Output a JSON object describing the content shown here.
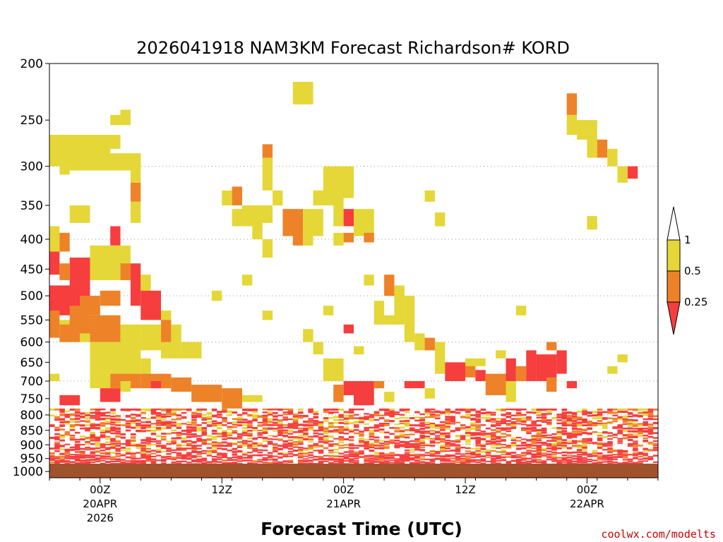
{
  "chart_data": {
    "type": "heatmap",
    "title": "2026041918 NAM3KM Forecast Richardson# KORD",
    "xlabel": "Forecast Time (UTC)",
    "ylabel": "",
    "y_axis": {
      "scale": "log-pressure",
      "inverted": true,
      "range": [
        1025,
        200
      ],
      "ticks": [
        "200",
        "250",
        "300",
        "350",
        "400",
        "450",
        "500",
        "550",
        "600",
        "650",
        "700",
        "750",
        "800",
        "850",
        "900",
        "950",
        "1000"
      ]
    },
    "x_axis": {
      "start_hour_utc": 18,
      "start_date": "2026-04-19",
      "range_hours": [
        -5,
        55
      ],
      "ticks": [
        {
          "hour": 0,
          "label": "00Z",
          "sub": "20APR",
          "sub2": "2026"
        },
        {
          "hour": 12,
          "label": "12Z",
          "sub": "",
          "sub2": ""
        },
        {
          "hour": 24,
          "label": "00Z",
          "sub": "21APR",
          "sub2": ""
        },
        {
          "hour": 36,
          "label": "12Z",
          "sub": "",
          "sub2": ""
        },
        {
          "hour": 48,
          "label": "00Z",
          "sub": "22APR",
          "sub2": ""
        }
      ]
    },
    "grid": {
      "horizontal_dotted": true,
      "levels": [
        300,
        400,
        500,
        600,
        700,
        800,
        900
      ]
    },
    "legend": {
      "placement": "right",
      "bins": [
        {
          "label": "> 1",
          "color": "#ffffff"
        },
        {
          "label": "0.5 - 1",
          "color": "#e4d737"
        },
        {
          "label": "0.25 - 0.5",
          "color": "#ee8228"
        },
        {
          "label": "< 0.25",
          "color": "#f63e3e"
        }
      ],
      "tick_labels": [
        "1",
        "0.5",
        "0.25"
      ]
    },
    "ground_color": "#a0522d",
    "cells": [
      [
        -5,
        1,
        265,
        300,
        "Y"
      ],
      [
        -4,
        2,
        265,
        280,
        "Y"
      ],
      [
        -3,
        4,
        285,
        305,
        "Y"
      ],
      [
        -4,
        -3,
        300,
        310,
        "Y"
      ],
      [
        -2,
        -1,
        285,
        300,
        "Y"
      ],
      [
        -3,
        -1,
        350,
        375,
        "Y"
      ],
      [
        1,
        3,
        245,
        255,
        "Y"
      ],
      [
        2,
        3,
        240,
        248,
        "Y"
      ],
      [
        3,
        4,
        285,
        320,
        "Y"
      ],
      [
        3,
        4,
        320,
        345,
        "O"
      ],
      [
        3,
        4,
        345,
        375,
        "Y"
      ],
      [
        1,
        2,
        380,
        410,
        "R"
      ],
      [
        -1,
        3,
        410,
        470,
        "Y"
      ],
      [
        0,
        2,
        440,
        470,
        "Y"
      ],
      [
        19,
        21,
        215,
        235,
        "Y"
      ],
      [
        16,
        17,
        275,
        290,
        "O"
      ],
      [
        16,
        17,
        290,
        330,
        "Y"
      ],
      [
        22,
        25,
        300,
        340,
        "Y"
      ],
      [
        21,
        24,
        330,
        350,
        "Y"
      ],
      [
        18,
        20,
        355,
        395,
        "O"
      ],
      [
        20,
        22,
        355,
        395,
        "Y"
      ],
      [
        23,
        24,
        350,
        380,
        "Y"
      ],
      [
        24,
        25,
        355,
        380,
        "R"
      ],
      [
        25,
        27,
        355,
        395,
        "Y"
      ],
      [
        26,
        27,
        390,
        405,
        "O"
      ],
      [
        19,
        20,
        395,
        410,
        "O"
      ],
      [
        20,
        21,
        395,
        410,
        "Y"
      ],
      [
        23,
        24,
        390,
        410,
        "Y"
      ],
      [
        24,
        25,
        390,
        405,
        "O"
      ],
      [
        12,
        13,
        330,
        350,
        "Y"
      ],
      [
        13,
        14,
        325,
        350,
        "O"
      ],
      [
        14,
        17,
        350,
        375,
        "Y"
      ],
      [
        15,
        16,
        375,
        400,
        "Y"
      ],
      [
        16,
        17,
        400,
        430,
        "Y"
      ],
      [
        17,
        18,
        330,
        350,
        "Y"
      ],
      [
        13,
        16,
        355,
        380,
        "Y"
      ],
      [
        32,
        33,
        330,
        345,
        "Y"
      ],
      [
        33,
        34,
        360,
        380,
        "Y"
      ],
      [
        14,
        15,
        460,
        480,
        "Y"
      ],
      [
        11,
        12,
        490,
        510,
        "Y"
      ],
      [
        16,
        17,
        530,
        550,
        "Y"
      ],
      [
        26,
        27,
        460,
        480,
        "Y"
      ],
      [
        46,
        47,
        225,
        245,
        "O"
      ],
      [
        46,
        47,
        245,
        265,
        "Y"
      ],
      [
        47,
        48,
        250,
        270,
        "Y"
      ],
      [
        48,
        49,
        250,
        290,
        "Y"
      ],
      [
        49,
        50,
        270,
        290,
        "O"
      ],
      [
        50,
        51,
        280,
        300,
        "Y"
      ],
      [
        51,
        52,
        300,
        320,
        "Y"
      ],
      [
        52,
        53,
        300,
        315,
        "R"
      ],
      [
        48,
        49,
        365,
        385,
        "Y"
      ],
      [
        -5,
        -4,
        380,
        420,
        "Y"
      ],
      [
        -4,
        -3,
        390,
        420,
        "O"
      ],
      [
        -5,
        -4,
        420,
        460,
        "R"
      ],
      [
        -3,
        -1,
        430,
        480,
        "R"
      ],
      [
        -4,
        -3,
        440,
        470,
        "O"
      ],
      [
        -5,
        -1,
        480,
        540,
        "R"
      ],
      [
        -2,
        0,
        500,
        540,
        "O"
      ],
      [
        0,
        2,
        490,
        520,
        "O"
      ],
      [
        2,
        3,
        440,
        470,
        "O"
      ],
      [
        3,
        4,
        440,
        520,
        "R"
      ],
      [
        4,
        5,
        460,
        520,
        "Y"
      ],
      [
        4,
        6,
        490,
        550,
        "R"
      ],
      [
        6,
        7,
        530,
        560,
        "Y"
      ],
      [
        -5,
        -4,
        530,
        590,
        "O"
      ],
      [
        -4,
        -1,
        550,
        600,
        "Y"
      ],
      [
        -3,
        -1,
        520,
        580,
        "O"
      ],
      [
        -1,
        2,
        540,
        600,
        "O"
      ],
      [
        2,
        4,
        560,
        620,
        "Y"
      ],
      [
        -1,
        4,
        600,
        680,
        "Y"
      ],
      [
        4,
        6,
        560,
        620,
        "Y"
      ],
      [
        6,
        7,
        550,
        620,
        "O"
      ],
      [
        7,
        8,
        560,
        600,
        "Y"
      ],
      [
        6,
        8,
        600,
        640,
        "Y"
      ],
      [
        8,
        10,
        600,
        640,
        "Y"
      ],
      [
        4,
        5,
        640,
        680,
        "Y"
      ],
      [
        -4,
        -2,
        560,
        600,
        "O"
      ],
      [
        -1,
        1,
        680,
        720,
        "Y"
      ],
      [
        1,
        4,
        680,
        720,
        "O"
      ],
      [
        4,
        7,
        680,
        720,
        "O"
      ],
      [
        7,
        9,
        690,
        730,
        "O"
      ],
      [
        9,
        12,
        710,
        760,
        "O"
      ],
      [
        12,
        14,
        720,
        780,
        "O"
      ],
      [
        0,
        2,
        720,
        760,
        "R"
      ],
      [
        2,
        3,
        700,
        730,
        "Y"
      ],
      [
        5,
        6,
        700,
        720,
        "R"
      ],
      [
        -5,
        -4,
        680,
        700,
        "Y"
      ],
      [
        -4,
        -2,
        740,
        770,
        "R"
      ],
      [
        14,
        16,
        740,
        760,
        "Y"
      ],
      [
        24,
        25,
        700,
        740,
        "R"
      ],
      [
        25,
        27,
        700,
        770,
        "R"
      ],
      [
        27,
        28,
        700,
        720,
        "O"
      ],
      [
        28,
        29,
        730,
        760,
        "Y"
      ],
      [
        30,
        32,
        700,
        720,
        "R"
      ],
      [
        32,
        33,
        720,
        750,
        "Y"
      ],
      [
        23,
        24,
        710,
        760,
        "O"
      ],
      [
        20,
        21,
        570,
        600,
        "Y"
      ],
      [
        21,
        22,
        600,
        630,
        "Y"
      ],
      [
        22,
        24,
        640,
        700,
        "Y"
      ],
      [
        25,
        26,
        610,
        630,
        "Y"
      ],
      [
        27,
        28,
        510,
        560,
        "Y"
      ],
      [
        28,
        29,
        460,
        500,
        "O"
      ],
      [
        29,
        30,
        480,
        560,
        "Y"
      ],
      [
        30,
        31,
        500,
        600,
        "Y"
      ],
      [
        31,
        32,
        580,
        620,
        "Y"
      ],
      [
        32,
        33,
        590,
        620,
        "O"
      ],
      [
        33,
        34,
        600,
        680,
        "Y"
      ],
      [
        28,
        30,
        540,
        560,
        "Y"
      ],
      [
        24,
        25,
        560,
        580,
        "R"
      ],
      [
        22,
        23,
        520,
        540,
        "Y"
      ],
      [
        34,
        36,
        650,
        700,
        "R"
      ],
      [
        36,
        37,
        650,
        690,
        "O"
      ],
      [
        37,
        38,
        670,
        700,
        "R"
      ],
      [
        38,
        40,
        680,
        740,
        "O"
      ],
      [
        40,
        41,
        640,
        700,
        "R"
      ],
      [
        41,
        42,
        660,
        700,
        "O"
      ],
      [
        42,
        43,
        620,
        700,
        "R"
      ],
      [
        43,
        45,
        630,
        700,
        "R"
      ],
      [
        44,
        45,
        690,
        730,
        "O"
      ],
      [
        45,
        46,
        620,
        680,
        "R"
      ],
      [
        46,
        47,
        700,
        720,
        "R"
      ],
      [
        44,
        45,
        600,
        620,
        "O"
      ],
      [
        40,
        41,
        700,
        760,
        "Y"
      ],
      [
        36,
        38,
        640,
        660,
        "Y"
      ],
      [
        39,
        40,
        620,
        640,
        "Y"
      ],
      [
        41,
        42,
        520,
        540,
        "Y"
      ],
      [
        50,
        51,
        660,
        680,
        "Y"
      ],
      [
        51,
        52,
        630,
        650,
        "Y"
      ],
      [
        -5,
        55,
        780,
        830,
        "M"
      ],
      [
        -5,
        55,
        830,
        900,
        "M"
      ],
      [
        -5,
        55,
        900,
        970,
        "M"
      ]
    ]
  },
  "colors": {
    "yellow": "#e4d737",
    "orange": "#ee8228",
    "red": "#f63e3e",
    "ground": "#a0522d",
    "credit": "#cc0000"
  },
  "credit_text": "coolwx.com/modelts"
}
